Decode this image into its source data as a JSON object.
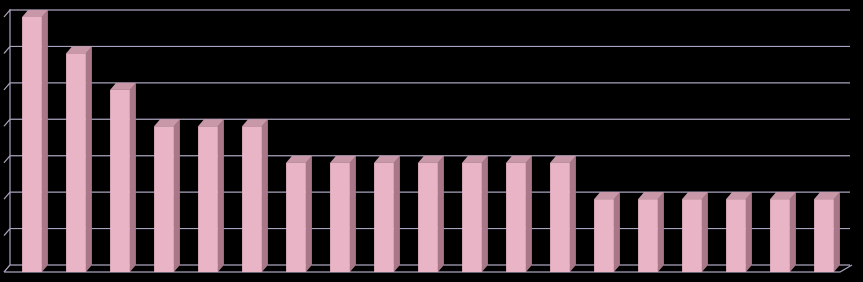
{
  "chart_data": {
    "type": "bar",
    "categories": [
      null,
      null,
      null,
      null,
      null,
      null,
      null,
      null,
      null,
      null,
      null,
      null,
      null,
      null,
      null,
      null,
      null,
      null,
      null
    ],
    "values": [
      7,
      6,
      5,
      4,
      4,
      4,
      3,
      3,
      3,
      3,
      3,
      3,
      3,
      2,
      2,
      2,
      2,
      2,
      2
    ],
    "color": "#e9b4c5",
    "ylim": [
      0,
      7
    ],
    "yticks": [
      0,
      1,
      2,
      3,
      4,
      5,
      6,
      7
    ],
    "grid": true
  }
}
